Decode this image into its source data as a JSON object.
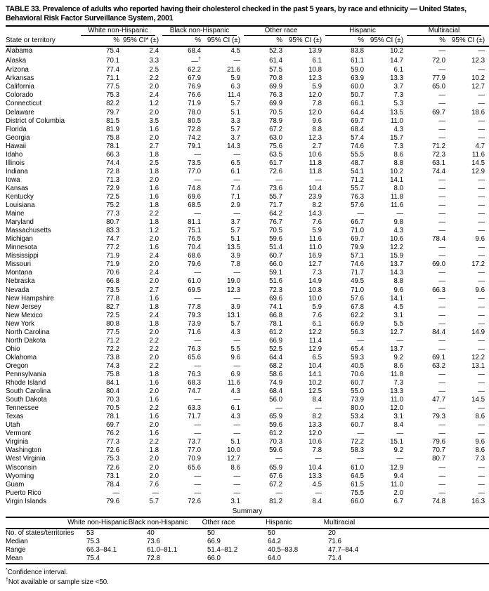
{
  "table": {
    "title": "TABLE 33. Prevalence of adults who reported having their cholesterol checked in the past 5 years, by race and ethnicity — United States, Behavioral Risk Factor Surveillance System, 2001",
    "state_col_label": "State or territory",
    "groups": [
      {
        "label": "White non-Hispanic",
        "pct": "%",
        "ci": "95% CI* (±)"
      },
      {
        "label": "Black non-Hispanic",
        "pct": "%",
        "ci": "95% CI (±)"
      },
      {
        "label": "Other race",
        "pct": "%",
        "ci": "95% CI (±)"
      },
      {
        "label": "Hispanic",
        "pct": "%",
        "ci": "95% CI (±)"
      },
      {
        "label": "Multiracial",
        "pct": "%",
        "ci": "95% CI (±)"
      }
    ],
    "rows": [
      {
        "state": "Alabama",
        "values": [
          "75.4",
          "2.4",
          "68.4",
          "4.5",
          "52.3",
          "13.9",
          "83.8",
          "10.2",
          "—",
          "—"
        ]
      },
      {
        "state": "Alaska",
        "values": [
          "70.1",
          "3.3",
          "—†",
          "—",
          "61.4",
          "6.1",
          "61.1",
          "14.7",
          "72.0",
          "12.3"
        ]
      },
      {
        "state": "Arizona",
        "values": [
          "77.4",
          "2.5",
          "62.2",
          "21.6",
          "57.5",
          "10.8",
          "59.0",
          "6.1",
          "—",
          "—"
        ]
      },
      {
        "state": "Arkansas",
        "values": [
          "71.1",
          "2.2",
          "67.9",
          "5.9",
          "70.8",
          "12.3",
          "63.9",
          "13.3",
          "77.9",
          "10.2"
        ]
      },
      {
        "state": "California",
        "values": [
          "77.5",
          "2.0",
          "76.9",
          "6.3",
          "69.9",
          "5.9",
          "60.0",
          "3.7",
          "65.0",
          "12.7"
        ]
      },
      {
        "state": "Colorado",
        "values": [
          "75.3",
          "2.4",
          "76.6",
          "11.4",
          "76.3",
          "12.0",
          "50.7",
          "7.3",
          "—",
          "—"
        ]
      },
      {
        "state": "Connecticut",
        "values": [
          "82.2",
          "1.2",
          "71.9",
          "5.7",
          "69.9",
          "7.8",
          "66.1",
          "5.3",
          "—",
          "—"
        ]
      },
      {
        "state": "Delaware",
        "values": [
          "79.7",
          "2.0",
          "78.0",
          "5.1",
          "70.5",
          "12.0",
          "64.4",
          "13.5",
          "69.7",
          "18.6"
        ]
      },
      {
        "state": "District of Columbia",
        "values": [
          "81.5",
          "3.5",
          "80.5",
          "3.3",
          "78.9",
          "9.6",
          "69.7",
          "11.0",
          "—",
          "—"
        ]
      },
      {
        "state": "Florida",
        "values": [
          "81.9",
          "1.6",
          "72.8",
          "5.7",
          "67.2",
          "8.8",
          "68.4",
          "4.3",
          "—",
          "—"
        ]
      },
      {
        "state": "Georgia",
        "values": [
          "75.8",
          "2.0",
          "74.2",
          "3.7",
          "63.0",
          "12.3",
          "57.4",
          "15.7",
          "—",
          "—"
        ]
      },
      {
        "state": "Hawaii",
        "values": [
          "78.1",
          "2.7",
          "79.1",
          "14.3",
          "75.6",
          "2.7",
          "74.6",
          "7.3",
          "71.2",
          "4.7"
        ]
      },
      {
        "state": "Idaho",
        "values": [
          "66.3",
          "1.8",
          "—",
          "—",
          "63.5",
          "10.6",
          "55.5",
          "8.6",
          "72.3",
          "11.6"
        ]
      },
      {
        "state": "Illinois",
        "values": [
          "74.4",
          "2.5",
          "73.5",
          "6.5",
          "61.7",
          "11.8",
          "48.7",
          "8.8",
          "63.1",
          "14.5"
        ]
      },
      {
        "state": "Indiana",
        "values": [
          "72.8",
          "1.8",
          "77.0",
          "6.1",
          "72.6",
          "11.8",
          "54.1",
          "10.2",
          "74.4",
          "12.9"
        ]
      },
      {
        "state": "Iowa",
        "values": [
          "71.3",
          "2.0",
          "—",
          "—",
          "—",
          "—",
          "71.2",
          "14.1",
          "—",
          "—"
        ]
      },
      {
        "state": "Kansas",
        "values": [
          "72.9",
          "1.6",
          "74.8",
          "7.4",
          "73.6",
          "10.4",
          "55.7",
          "8.0",
          "—",
          "—"
        ]
      },
      {
        "state": "Kentucky",
        "values": [
          "72.5",
          "1.6",
          "69.6",
          "7.1",
          "55.7",
          "23.9",
          "76.3",
          "11.8",
          "—",
          "—"
        ]
      },
      {
        "state": "Louisiana",
        "values": [
          "75.2",
          "1.8",
          "68.5",
          "2.9",
          "71.7",
          "8.2",
          "57.6",
          "11.6",
          "—",
          "—"
        ]
      },
      {
        "state": "Maine",
        "values": [
          "77.3",
          "2.2",
          "—",
          "—",
          "64.2",
          "14.3",
          "—",
          "—",
          "—",
          "—"
        ]
      },
      {
        "state": "Maryland",
        "values": [
          "80.7",
          "1.8",
          "81.1",
          "3.7",
          "76.7",
          "7.6",
          "66.7",
          "9.8",
          "—",
          "—"
        ]
      },
      {
        "state": "Massachusetts",
        "values": [
          "83.3",
          "1.2",
          "75.1",
          "5.7",
          "70.5",
          "5.9",
          "71.0",
          "4.3",
          "—",
          "—"
        ]
      },
      {
        "state": "Michigan",
        "values": [
          "74.7",
          "2.0",
          "76.5",
          "5.1",
          "59.6",
          "11.6",
          "69.7",
          "10.6",
          "78.4",
          "9.6"
        ]
      },
      {
        "state": "Minnesota",
        "values": [
          "77.2",
          "1.6",
          "70.4",
          "13.5",
          "51.4",
          "11.0",
          "79.9",
          "12.2",
          "—",
          "—"
        ]
      },
      {
        "state": "Mississippi",
        "values": [
          "71.9",
          "2.4",
          "68.6",
          "3.9",
          "60.7",
          "16.9",
          "57.1",
          "15.9",
          "—",
          "—"
        ]
      },
      {
        "state": "Missouri",
        "values": [
          "71.9",
          "2.0",
          "79.6",
          "7.8",
          "66.0",
          "12.7",
          "74.6",
          "13.7",
          "69.0",
          "17.2"
        ]
      },
      {
        "state": "Montana",
        "values": [
          "70.6",
          "2.4",
          "—",
          "—",
          "59.1",
          "7.3",
          "71.7",
          "14.3",
          "—",
          "—"
        ]
      },
      {
        "state": "Nebraska",
        "values": [
          "66.8",
          "2.0",
          "61.0",
          "19.0",
          "51.6",
          "14.9",
          "49.5",
          "8.8",
          "—",
          "—"
        ]
      },
      {
        "state": "Nevada",
        "values": [
          "73.5",
          "2.7",
          "69.5",
          "12.3",
          "72.3",
          "10.8",
          "71.0",
          "9.6",
          "66.3",
          "9.6"
        ]
      },
      {
        "state": "New Hampshire",
        "values": [
          "77.8",
          "1.6",
          "—",
          "—",
          "69.6",
          "10.0",
          "57.6",
          "14.1",
          "—",
          "—"
        ]
      },
      {
        "state": "New Jersey",
        "values": [
          "82.7",
          "1.8",
          "77.8",
          "3.9",
          "74.1",
          "5.9",
          "67.8",
          "4.5",
          "—",
          "—"
        ]
      },
      {
        "state": "New Mexico",
        "values": [
          "72.5",
          "2.4",
          "79.3",
          "13.1",
          "66.8",
          "7.6",
          "62.2",
          "3.1",
          "—",
          "—"
        ]
      },
      {
        "state": "New York",
        "values": [
          "80.8",
          "1.8",
          "73.9",
          "5.7",
          "78.1",
          "6.1",
          "66.9",
          "5.5",
          "—",
          "—"
        ]
      },
      {
        "state": "North Carolina",
        "values": [
          "77.5",
          "2.0",
          "71.6",
          "4.3",
          "61.2",
          "12.2",
          "56.3",
          "12.7",
          "84.4",
          "14.9"
        ]
      },
      {
        "state": "North Dakota",
        "values": [
          "71.2",
          "2.2",
          "—",
          "—",
          "66.9",
          "11.4",
          "—",
          "—",
          "—",
          "—"
        ]
      },
      {
        "state": "Ohio",
        "values": [
          "72.2",
          "2.2",
          "76.3",
          "5.5",
          "52.5",
          "12.9",
          "65.4",
          "13.7",
          "—",
          "—"
        ]
      },
      {
        "state": "Oklahoma",
        "values": [
          "73.8",
          "2.0",
          "65.6",
          "9.6",
          "64.4",
          "6.5",
          "59.3",
          "9.2",
          "69.1",
          "12.2"
        ]
      },
      {
        "state": "Oregon",
        "values": [
          "74.3",
          "2.2",
          "—",
          "—",
          "68.2",
          "10.4",
          "40.5",
          "8.6",
          "63.2",
          "13.1"
        ]
      },
      {
        "state": "Pennsylvania",
        "values": [
          "75.8",
          "1.8",
          "76.3",
          "6.9",
          "58.6",
          "14.1",
          "70.6",
          "11.8",
          "—",
          "—"
        ]
      },
      {
        "state": "Rhode Island",
        "values": [
          "84.1",
          "1.6",
          "68.3",
          "11.6",
          "74.9",
          "10.2",
          "60.7",
          "7.3",
          "—",
          "—"
        ]
      },
      {
        "state": "South Carolina",
        "values": [
          "80.4",
          "2.0",
          "74.7",
          "4.3",
          "68.4",
          "12.5",
          "55.0",
          "13.3",
          "—",
          "—"
        ]
      },
      {
        "state": "South Dakota",
        "values": [
          "70.3",
          "1.6",
          "—",
          "—",
          "56.0",
          "8.4",
          "73.9",
          "11.0",
          "47.7",
          "14.5"
        ]
      },
      {
        "state": "Tennessee",
        "values": [
          "70.5",
          "2.2",
          "63.3",
          "6.1",
          "—",
          "—",
          "80.0",
          "12.0",
          "—",
          "—"
        ]
      },
      {
        "state": "Texas",
        "values": [
          "78.1",
          "1.6",
          "71.7",
          "4.3",
          "65.9",
          "8.2",
          "53.4",
          "3.1",
          "79.3",
          "8.6"
        ]
      },
      {
        "state": "Utah",
        "values": [
          "69.7",
          "2.0",
          "—",
          "—",
          "59.6",
          "13.3",
          "60.7",
          "8.4",
          "—",
          "—"
        ]
      },
      {
        "state": "Vermont",
        "values": [
          "76.2",
          "1.6",
          "—",
          "—",
          "61.2",
          "12.0",
          "—",
          "—",
          "—",
          "—"
        ]
      },
      {
        "state": "Virginia",
        "values": [
          "77.3",
          "2.2",
          "73.7",
          "5.1",
          "70.3",
          "10.6",
          "72.2",
          "15.1",
          "79.6",
          "9.6"
        ]
      },
      {
        "state": "Washington",
        "values": [
          "72.6",
          "1.8",
          "77.0",
          "10.0",
          "59.6",
          "7.8",
          "58.3",
          "9.2",
          "70.7",
          "8.6"
        ]
      },
      {
        "state": "West Virginia",
        "values": [
          "75.3",
          "2.0",
          "70.9",
          "12.7",
          "—",
          "—",
          "—",
          "—",
          "80.7",
          "7.3"
        ]
      },
      {
        "state": "Wisconsin",
        "values": [
          "72.6",
          "2.0",
          "65.6",
          "8.6",
          "65.9",
          "10.4",
          "61.0",
          "12.9",
          "—",
          "—"
        ]
      },
      {
        "state": "Wyoming",
        "values": [
          "73.1",
          "2.0",
          "—",
          "—",
          "67.6",
          "13.3",
          "64.5",
          "9.4",
          "—",
          "—"
        ]
      },
      {
        "state": "Guam",
        "values": [
          "78.4",
          "7.6",
          "—",
          "—",
          "67.2",
          "4.5",
          "61.5",
          "11.0",
          "—",
          "—"
        ]
      },
      {
        "state": "Puerto Rico",
        "values": [
          "—",
          "—",
          "—",
          "—",
          "—",
          "—",
          "75.5",
          "2.0",
          "—",
          "—"
        ]
      },
      {
        "state": "Virgin Islands",
        "values": [
          "79.6",
          "5.7",
          "72.6",
          "3.1",
          "81.2",
          "8.4",
          "66.0",
          "6.7",
          "74.8",
          "16.3"
        ]
      }
    ]
  },
  "summary": {
    "title": "Summary",
    "groups": [
      "White non-Hispanic",
      "Black non-Hispanic",
      "Other race",
      "Hispanic",
      "Multiracial"
    ],
    "rows": [
      {
        "label": "No. of states/territories",
        "values": [
          "53",
          "40",
          "50",
          "50",
          "20"
        ]
      },
      {
        "label": "Median",
        "values": [
          "75.3",
          "73.6",
          "66.9",
          "64.2",
          "71.6"
        ]
      },
      {
        "label": "Range",
        "values": [
          "66.3–84.1",
          "61.0–81.1",
          "51.4–81.2",
          "40.5–83.8",
          "47.7–84.4"
        ]
      },
      {
        "label": "Mean",
        "values": [
          "75.4",
          "72.8",
          "66.0",
          "64.0",
          "71.4"
        ]
      }
    ]
  },
  "footnotes": [
    {
      "marker": "*",
      "text": "Confidence interval."
    },
    {
      "marker": "†",
      "text": "Not available or sample size <50."
    }
  ]
}
